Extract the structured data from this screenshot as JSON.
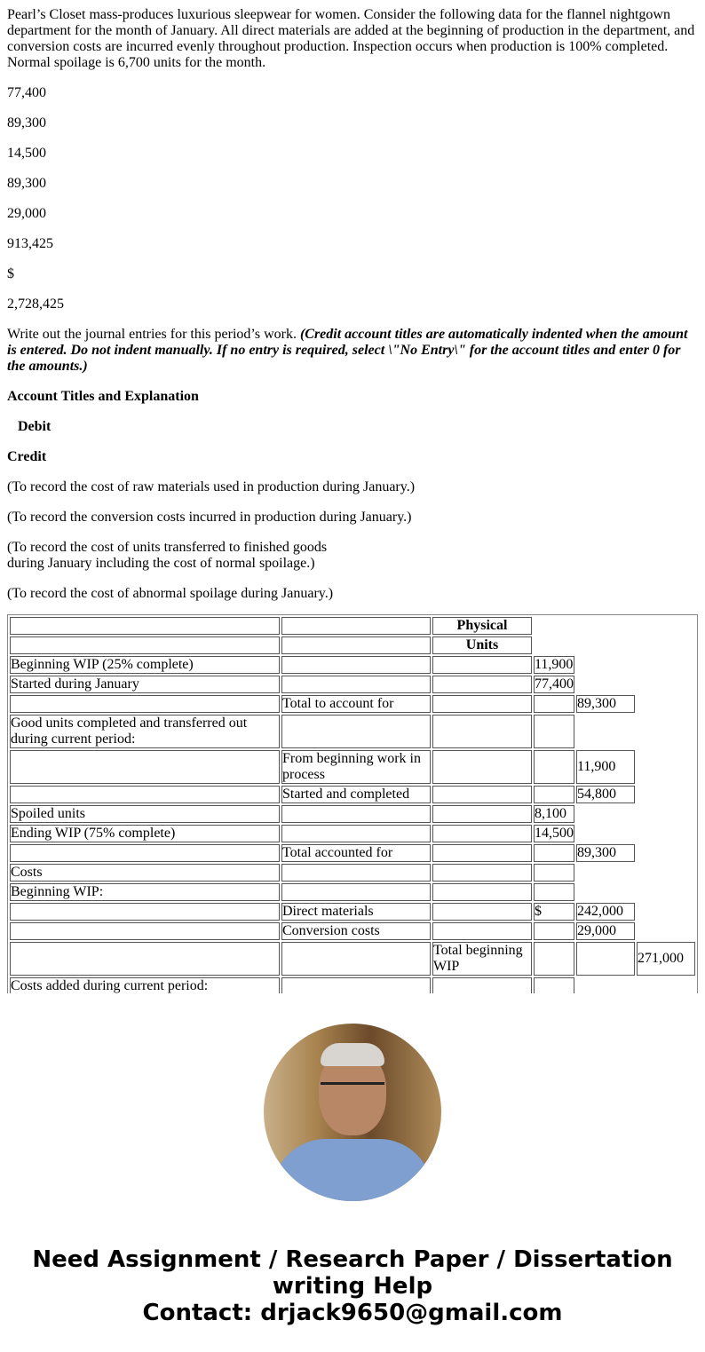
{
  "intro": "Pearl’s Closet mass-produces luxurious sleepwear for women. Consider the following data for the flannel nightgown department for the month of January. All direct materials are added at the beginning of production in the department, and conversion costs are incurred evenly throughout production. Inspection occurs when production is 100% completed. Normal spoilage is 6,700 units for the month.",
  "values": [
    "77,400",
    "89,300",
    "14,500",
    "89,300",
    "29,000",
    "913,425",
    "$",
    "2,728,425"
  ],
  "instruction": "Write out the journal entries for this period’s work. ",
  "instruction_note": "(Credit account titles are automatically indented when the amount is entered. Do not indent manually. If no entry is required, select \\\"No Entry\\\" for the account titles and enter 0 for the amounts.)",
  "headers": {
    "account": "Account Titles and Explanation",
    "debit": "Debit",
    "credit": "Credit"
  },
  "entries": [
    "(To record the cost of raw materials used in production during January.)",
    "(To record the conversion costs incurred in production during January.)",
    "(To record the cost of units transferred to finished goods",
    "during January including the cost of normal spoilage.)",
    "(To record the cost of abnormal spoilage during January.)"
  ],
  "table": {
    "header1": "Physical",
    "header2": "Units",
    "rows": [
      [
        [
          "b",
          "Beginning WIP (25% complete)"
        ],
        [
          "b",
          ""
        ],
        [
          "b",
          ""
        ],
        [
          "b",
          "11,900"
        ],
        [
          "n",
          ""
        ],
        [
          "n",
          ""
        ]
      ],
      [
        [
          "b",
          "Started during January"
        ],
        [
          "b",
          ""
        ],
        [
          "b",
          ""
        ],
        [
          "b",
          "77,400"
        ],
        [
          "n",
          ""
        ],
        [
          "n",
          ""
        ]
      ],
      [
        [
          "b",
          ""
        ],
        [
          "b",
          "Total to account for"
        ],
        [
          "b",
          ""
        ],
        [
          "b",
          ""
        ],
        [
          "b",
          "89,300"
        ],
        [
          "n",
          ""
        ]
      ],
      [
        [
          "b",
          "Good units completed and transferred out during current period:"
        ],
        [
          "b",
          ""
        ],
        [
          "b",
          ""
        ],
        [
          "b",
          ""
        ],
        [
          "n",
          ""
        ],
        [
          "n",
          ""
        ]
      ],
      [
        [
          "b",
          ""
        ],
        [
          "b",
          "From beginning work in process"
        ],
        [
          "b",
          ""
        ],
        [
          "b",
          ""
        ],
        [
          "b",
          "11,900"
        ],
        [
          "n",
          ""
        ]
      ],
      [
        [
          "b",
          ""
        ],
        [
          "b",
          "Started and completed"
        ],
        [
          "b",
          ""
        ],
        [
          "b",
          ""
        ],
        [
          "b",
          "54,800"
        ],
        [
          "n",
          ""
        ]
      ],
      [
        [
          "b",
          "Spoiled units"
        ],
        [
          "b",
          ""
        ],
        [
          "b",
          ""
        ],
        [
          "b",
          "8,100"
        ],
        [
          "n",
          ""
        ],
        [
          "n",
          ""
        ]
      ],
      [
        [
          "b",
          "Ending WIP (75% complete)"
        ],
        [
          "b",
          ""
        ],
        [
          "b",
          ""
        ],
        [
          "b",
          "14,500"
        ],
        [
          "n",
          ""
        ],
        [
          "n",
          ""
        ]
      ],
      [
        [
          "b",
          ""
        ],
        [
          "b",
          "Total accounted for"
        ],
        [
          "b",
          ""
        ],
        [
          "b",
          ""
        ],
        [
          "b",
          "89,300"
        ],
        [
          "n",
          ""
        ]
      ],
      [
        [
          "b",
          "Costs"
        ],
        [
          "b",
          ""
        ],
        [
          "b",
          ""
        ],
        [
          "b",
          ""
        ],
        [
          "n",
          ""
        ],
        [
          "n",
          ""
        ]
      ],
      [
        [
          "b",
          "Beginning WIP:"
        ],
        [
          "b",
          ""
        ],
        [
          "b",
          ""
        ],
        [
          "b",
          ""
        ],
        [
          "n",
          ""
        ],
        [
          "n",
          ""
        ]
      ],
      [
        [
          "b",
          ""
        ],
        [
          "b",
          "Direct materials"
        ],
        [
          "b",
          ""
        ],
        [
          "b",
          "$"
        ],
        [
          "b",
          "242,000"
        ],
        [
          "n",
          ""
        ]
      ],
      [
        [
          "b",
          ""
        ],
        [
          "b",
          "Conversion costs"
        ],
        [
          "b",
          ""
        ],
        [
          "b",
          ""
        ],
        [
          "b",
          "29,000"
        ],
        [
          "n",
          ""
        ]
      ],
      [
        [
          "b",
          ""
        ],
        [
          "b",
          ""
        ],
        [
          "b",
          "Total beginning WIP"
        ],
        [
          "b",
          ""
        ],
        [
          "b",
          ""
        ],
        [
          "b",
          "271,000"
        ]
      ],
      [
        [
          "b",
          "Costs added during current period:"
        ],
        [
          "b",
          ""
        ],
        [
          "b",
          ""
        ],
        [
          "b",
          ""
        ],
        [
          "n",
          ""
        ],
        [
          "n",
          ""
        ]
      ]
    ]
  },
  "footer": {
    "line1": "Need Assignment / Research Paper / Dissertation",
    "line2": "writing Help",
    "line3": "Contact: drjack9650@gmail.com"
  }
}
